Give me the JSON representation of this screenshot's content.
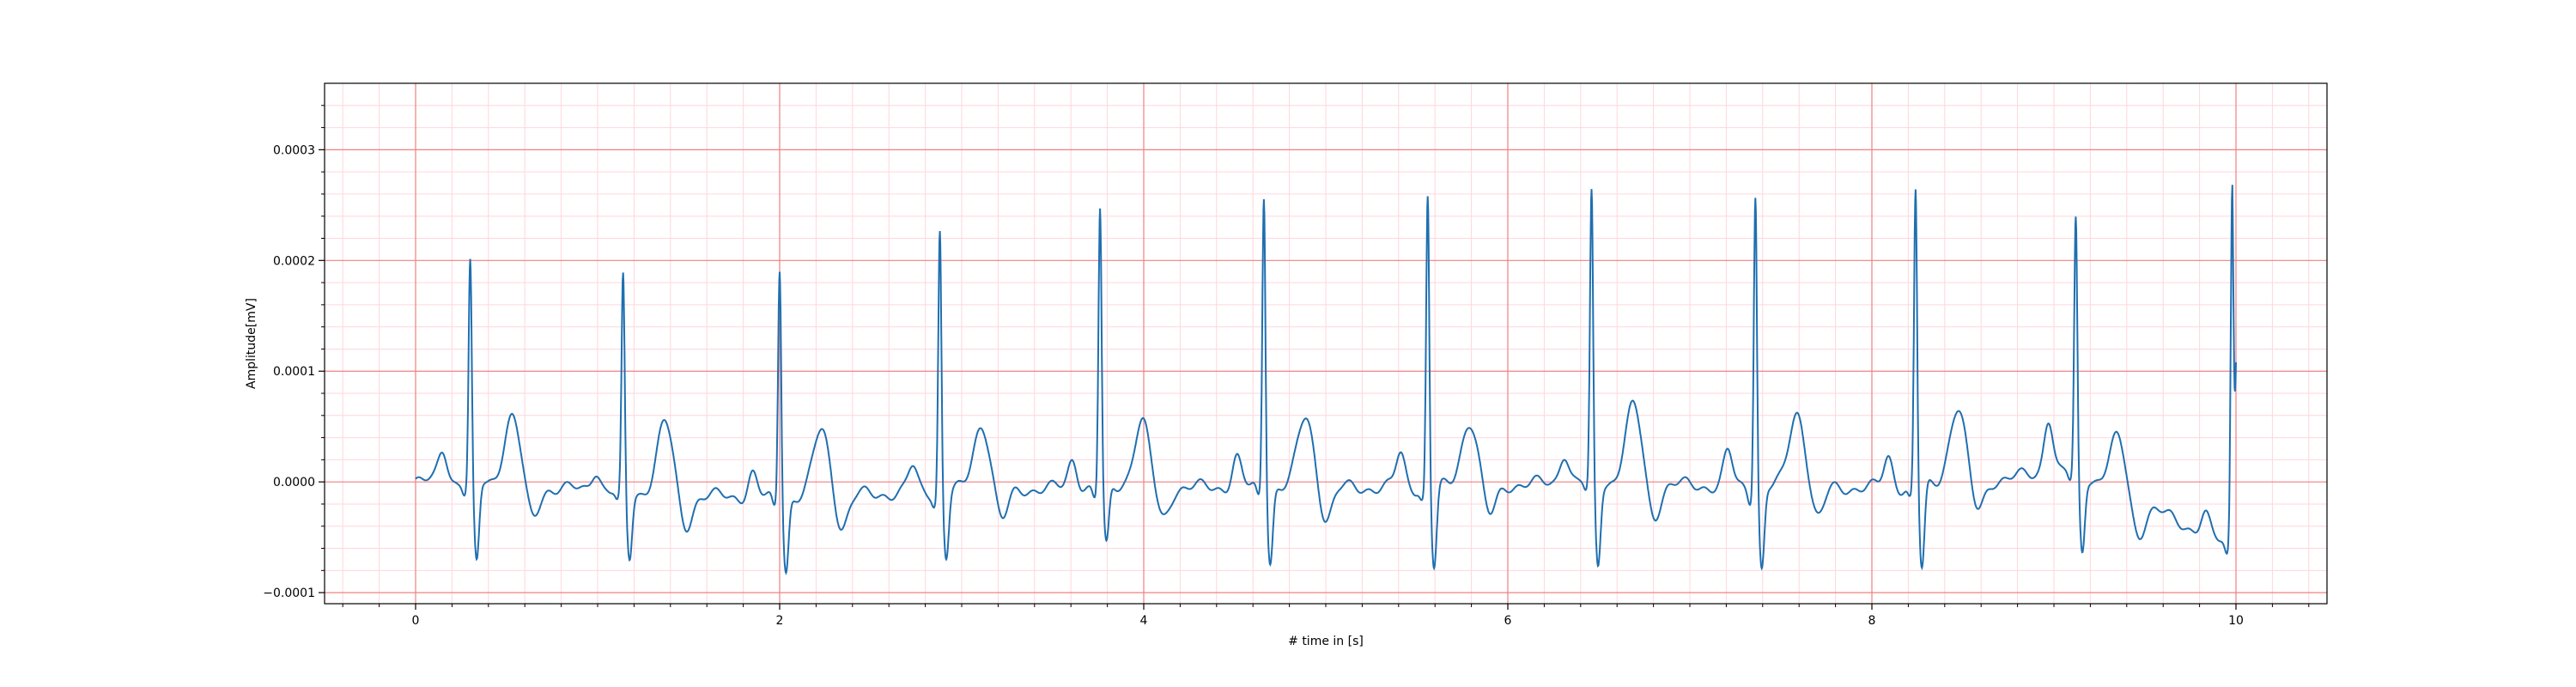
{
  "chart_data": {
    "type": "line",
    "title": "",
    "xlabel": "# time in [s]",
    "ylabel": "Amplitude[mV]",
    "xlim": [
      -0.5,
      10.5
    ],
    "ylim": [
      -0.00011,
      0.00036
    ],
    "x_ticks": [
      0,
      2,
      4,
      6,
      8,
      10
    ],
    "x_tick_labels": [
      "0",
      "2",
      "4",
      "6",
      "8",
      "10"
    ],
    "y_ticks": [
      -0.0001,
      0.0,
      0.0001,
      0.0002,
      0.0003
    ],
    "y_tick_labels": [
      "−0.0001",
      "0.0000",
      "0.0001",
      "0.0002",
      "0.0003"
    ],
    "grid": {
      "major": true,
      "minor": true,
      "major_color": "#f08080",
      "minor_color": "#ffd6dc"
    },
    "line_color": "#1f6fb0",
    "beats": [
      {
        "r": 0.3,
        "amp": 0.0002,
        "p": 3e-05,
        "t": 6.2e-05,
        "s": -7.5e-05,
        "base": 0.0
      },
      {
        "r": 1.14,
        "amp": 0.000195,
        "p": 2e-05,
        "t": 6.4e-05,
        "s": -6e-05,
        "base": -1e-05
      },
      {
        "r": 2.0,
        "amp": 0.000212,
        "p": 2.2e-05,
        "t": 6e-05,
        "s": -6.4e-05,
        "base": -1.5e-05
      },
      {
        "r": 2.88,
        "amp": 0.000238,
        "p": 2.2e-05,
        "t": 6e-05,
        "s": -6e-05,
        "base": -8e-06
      },
      {
        "r": 3.76,
        "amp": 0.000253,
        "p": 2.6e-05,
        "t": 5.9e-05,
        "s": -5.5e-05,
        "base": -5e-06
      },
      {
        "r": 4.66,
        "amp": 0.000268,
        "p": 2.7e-05,
        "t": 6.3e-05,
        "s": -6.5e-05,
        "base": -5e-06
      },
      {
        "r": 5.56,
        "amp": 0.000266,
        "p": 3e-05,
        "t": 5.9e-05,
        "s": -7.3e-05,
        "base": -5e-06
      },
      {
        "r": 6.46,
        "amp": 0.000262,
        "p": 2.8e-05,
        "t": 6.9e-05,
        "s": -7.5e-05,
        "base": 0.0
      },
      {
        "r": 7.36,
        "amp": 0.00027,
        "p": 3e-05,
        "t": 6.8e-05,
        "s": -7.3e-05,
        "base": -5e-06
      },
      {
        "r": 8.24,
        "amp": 0.000272,
        "p": 2.7e-05,
        "t": 6.9e-05,
        "s": -7.6e-05,
        "base": -5e-06
      },
      {
        "r": 9.12,
        "amp": 0.000228,
        "p": 5.2e-05,
        "t": 4.7e-05,
        "s": -7e-05,
        "base": 1e-05
      },
      {
        "r": 9.98,
        "amp": 0.000333,
        "p": 1.8e-05,
        "t": 0.0,
        "s": 0.0,
        "base": -6e-05
      }
    ],
    "x_end": 10.0,
    "y_end": 0.000108
  }
}
